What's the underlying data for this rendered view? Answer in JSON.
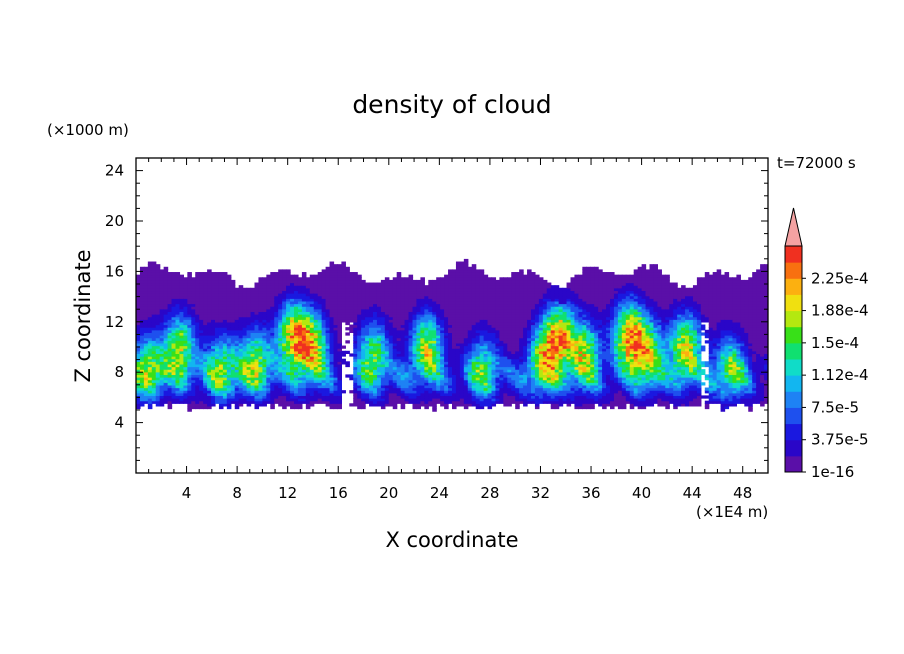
{
  "chart_data": {
    "type": "heatmap",
    "title": "density of cloud",
    "xlabel": "X coordinate",
    "ylabel": "Z coordinate",
    "x_unit": "(×1E4 m)",
    "y_unit": "(×1000 m)",
    "time_label": "t=72000 s",
    "xlim": [
      0,
      50
    ],
    "ylim": [
      0,
      25
    ],
    "x_ticks": [
      "4",
      "8",
      "12",
      "16",
      "20",
      "24",
      "28",
      "32",
      "36",
      "40",
      "44",
      "48"
    ],
    "y_ticks": [
      "4",
      "8",
      "12",
      "16",
      "20",
      "24"
    ],
    "colorbar": {
      "labels": [
        "1e-16",
        "3.75e-5",
        "7.5e-5",
        "1.12e-4",
        "1.5e-4",
        "1.88e-4",
        "2.25e-4"
      ],
      "levels": [
        1e-16,
        1.875e-05,
        3.75e-05,
        5.625e-05,
        7.5e-05,
        9.375e-05,
        0.0001125,
        0.00013125,
        0.00015,
        0.00016875,
        0.0001875,
        0.00020625,
        0.000225,
        0.00024375
      ],
      "colors": [
        "#5a0fa8",
        "#2a06c8",
        "#1a18e0",
        "#1e50ee",
        "#1e82f4",
        "#12b6f0",
        "#10dcc8",
        "#10e070",
        "#38e018",
        "#b4e810",
        "#f0e010",
        "#fcb010",
        "#f87010",
        "#f03020"
      ],
      "over_color": "#f4a2a2"
    },
    "cloud_layer": {
      "z_base": 5,
      "z_top_range": [
        15,
        17
      ],
      "cores": [
        {
          "x": 1,
          "z": 8.5,
          "value": 0.00015
        },
        {
          "x": 3.5,
          "z": 10,
          "value": 0.00017
        },
        {
          "x": 6.8,
          "z": 8.5,
          "value": 0.00014
        },
        {
          "x": 9.5,
          "z": 9,
          "value": 0.00015
        },
        {
          "x": 12.5,
          "z": 11,
          "value": 0.0002
        },
        {
          "x": 14,
          "z": 10,
          "value": 0.00017
        },
        {
          "x": 18.8,
          "z": 9.5,
          "value": 0.00015
        },
        {
          "x": 23,
          "z": 10,
          "value": 0.00018
        },
        {
          "x": 27.5,
          "z": 8.5,
          "value": 0.00012
        },
        {
          "x": 32.2,
          "z": 9,
          "value": 0.00015
        },
        {
          "x": 33.5,
          "z": 11,
          "value": 0.00019
        },
        {
          "x": 35.5,
          "z": 9.5,
          "value": 0.00016
        },
        {
          "x": 39,
          "z": 11,
          "value": 0.00021
        },
        {
          "x": 40.5,
          "z": 9.5,
          "value": 0.00016
        },
        {
          "x": 43.5,
          "z": 10,
          "value": 0.00019
        },
        {
          "x": 47,
          "z": 8.5,
          "value": 0.00013
        }
      ]
    }
  }
}
